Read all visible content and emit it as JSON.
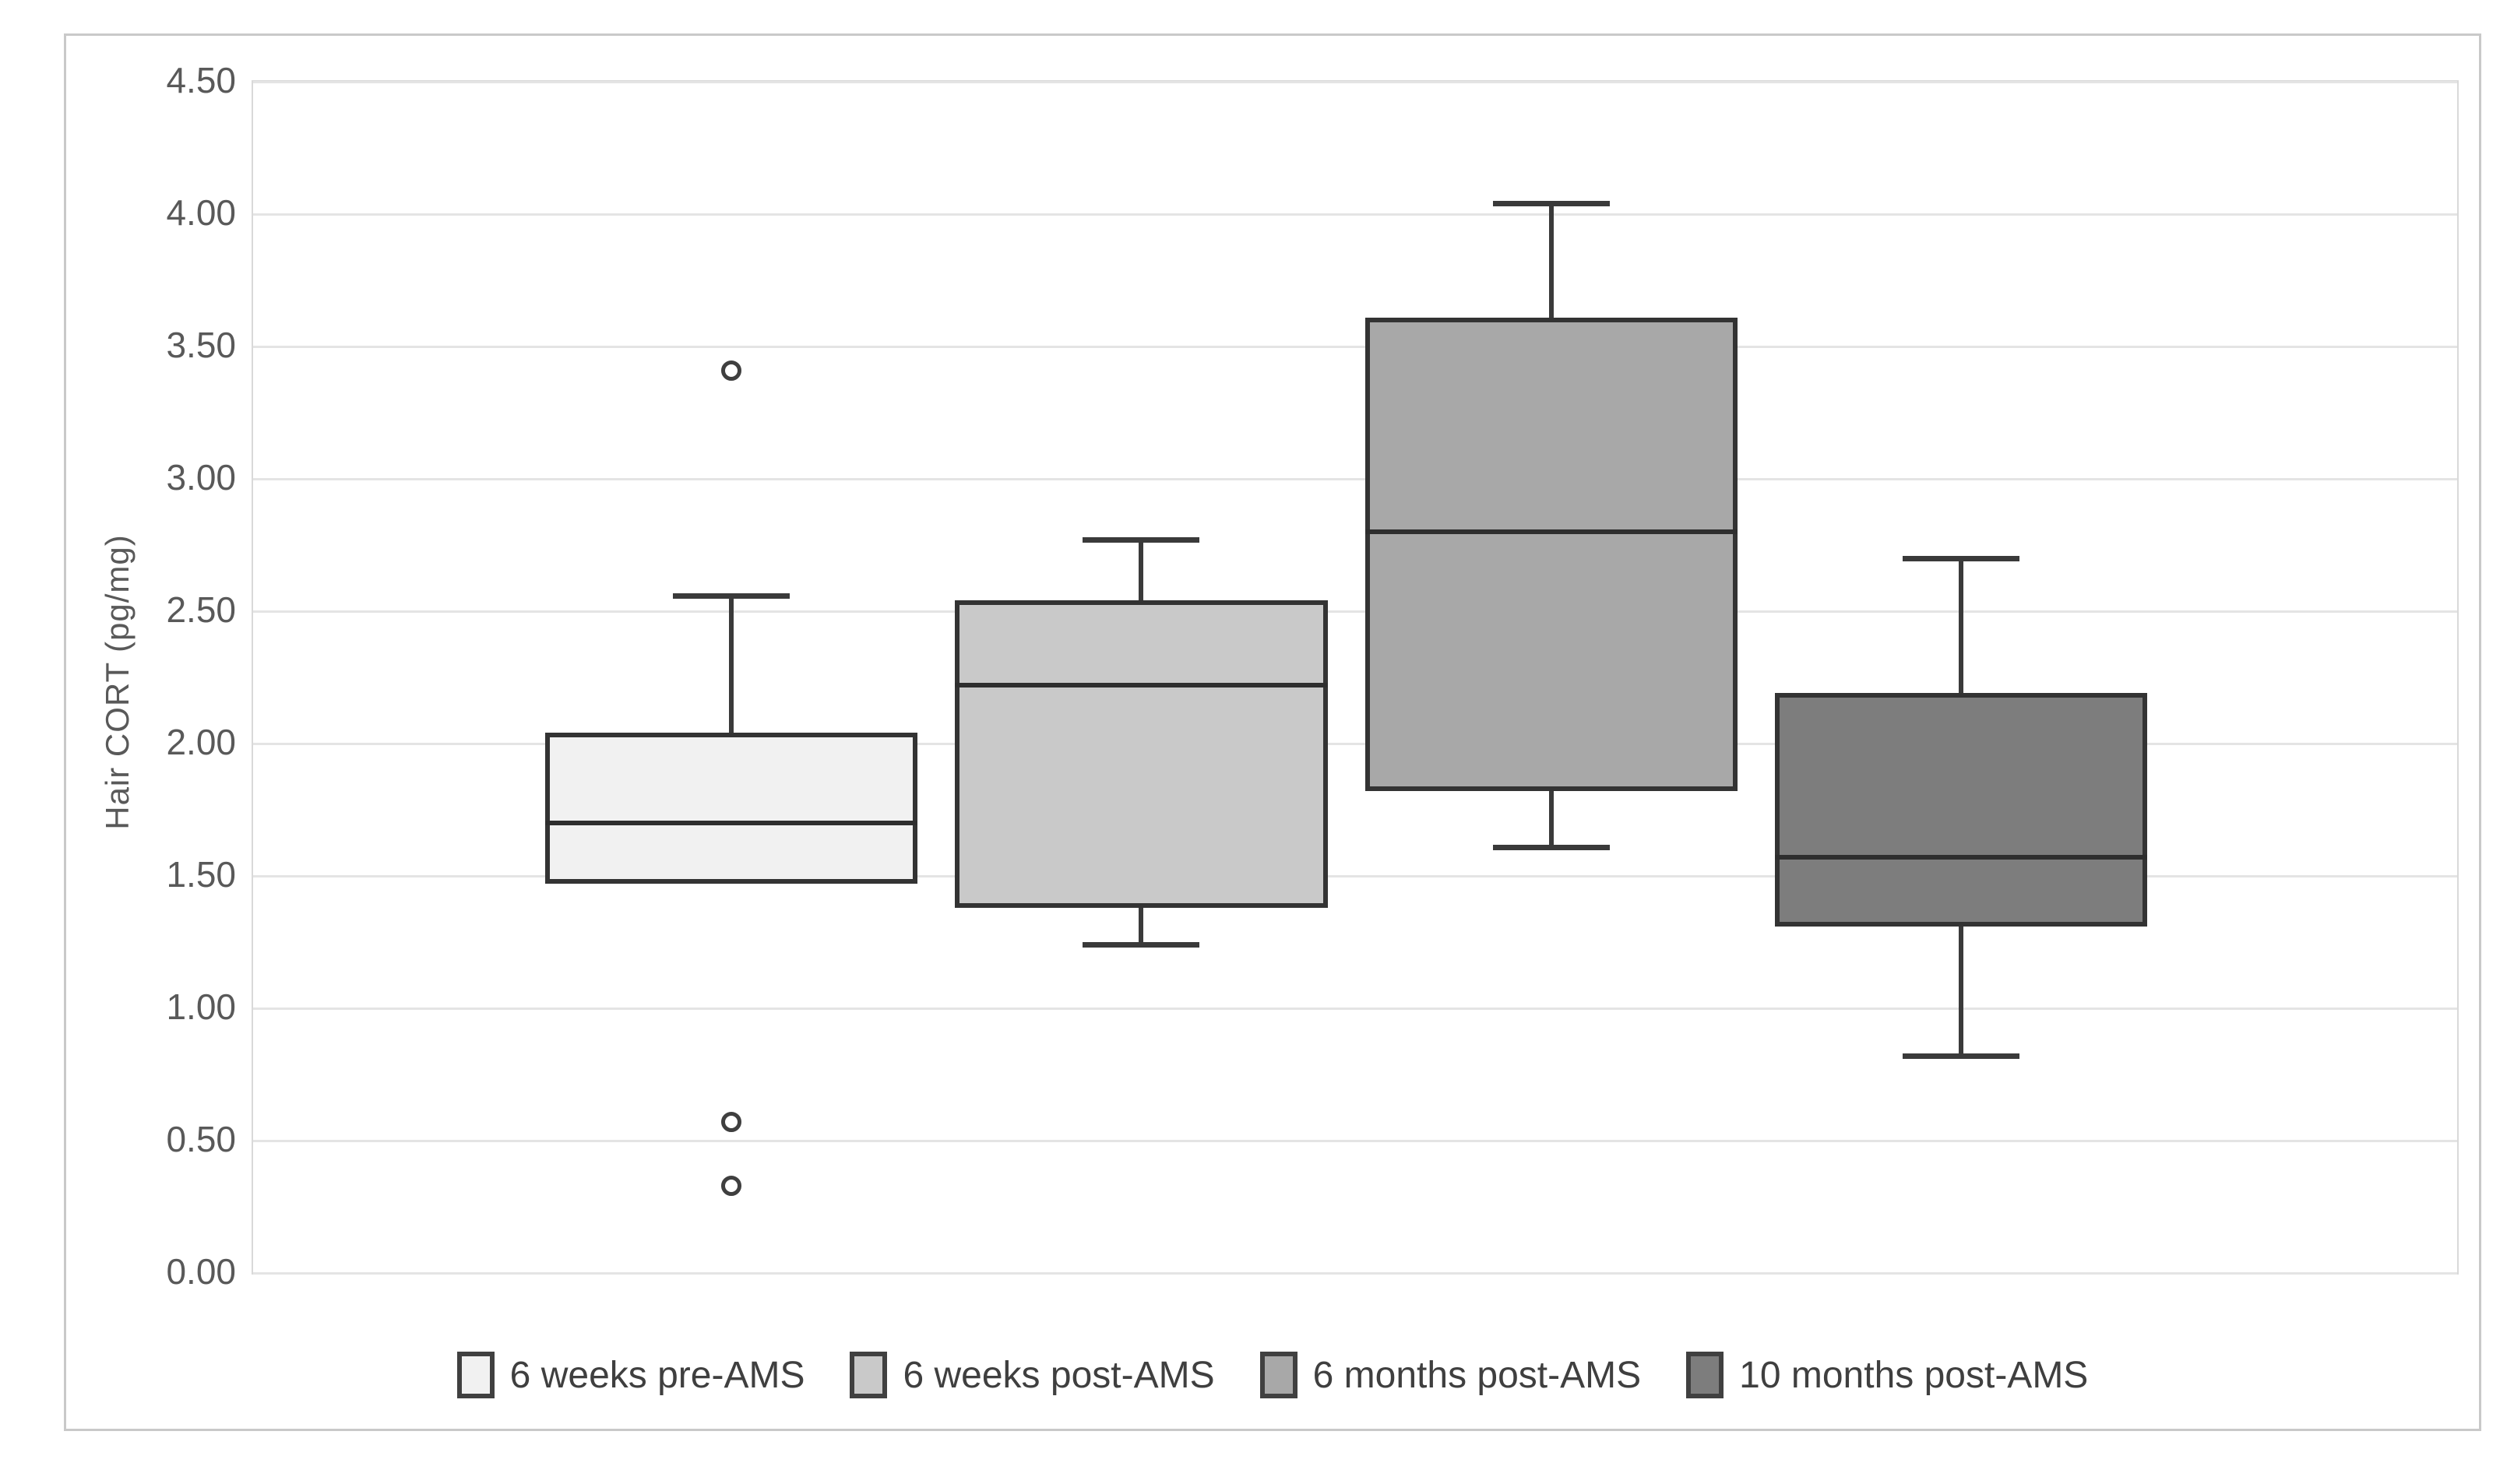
{
  "chart_data": {
    "type": "box",
    "title": "",
    "xlabel": "",
    "ylabel": "Hair CORT (pg/mg)",
    "grid": true,
    "legend_position": "bottom",
    "y_axis": {
      "min": 0,
      "max": 4.5,
      "step": 0.5,
      "tick_labels": [
        "4.50",
        "4.00",
        "3.50",
        "3.00",
        "2.50",
        "2.00",
        "1.50",
        "1.00",
        "0.50",
        "0.00"
      ]
    },
    "categories": [
      "6 weeks pre-AMS",
      "6 weeks post-AMS",
      "6 months post-AMS",
      "10 months post-AMS"
    ],
    "series": [
      {
        "name": "6 weeks pre-AMS",
        "fill": "#f1f1f1",
        "center_frac": 0.217,
        "whisker_low": 1.47,
        "q1": 1.47,
        "median": 1.7,
        "q3": 2.04,
        "whisker_high": 2.56,
        "outliers": [
          3.41,
          0.57,
          0.33
        ]
      },
      {
        "name": "6 weeks post-AMS",
        "fill": "#c9c9c9",
        "center_frac": 0.403,
        "whisker_low": 1.24,
        "q1": 1.38,
        "median": 2.22,
        "q3": 2.54,
        "whisker_high": 2.77,
        "outliers": []
      },
      {
        "name": "6 months post-AMS",
        "fill": "#a8a8a8",
        "center_frac": 0.589,
        "whisker_low": 1.61,
        "q1": 1.82,
        "median": 2.8,
        "q3": 3.61,
        "whisker_high": 4.04,
        "outliers": []
      },
      {
        "name": "10 months post-AMS",
        "fill": "#7d7d7d",
        "center_frac": 0.775,
        "whisker_low": 0.82,
        "q1": 1.31,
        "median": 1.57,
        "q3": 2.19,
        "whisker_high": 2.7,
        "outliers": []
      }
    ],
    "colors": {
      "box_border": "#333333",
      "whisker": "#3a3a3a",
      "gridline": "#e4e4e4",
      "plot_border": "#d9d9d9",
      "figure_border": "#c9c9c9",
      "tick_text": "#595959",
      "legend_text": "#3f3f3f",
      "background": "#ffffff"
    }
  }
}
